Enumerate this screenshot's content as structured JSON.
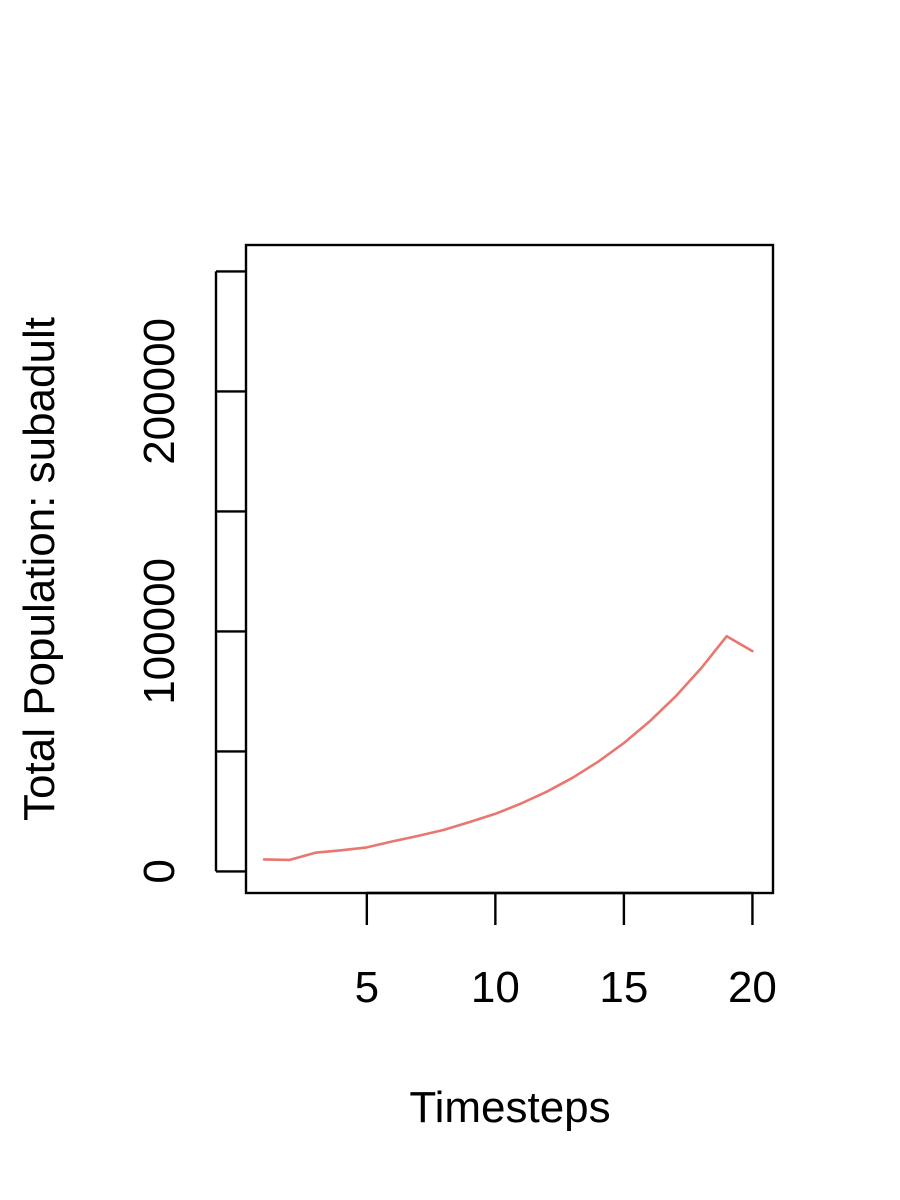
{
  "chart_data": {
    "type": "line",
    "xlabel": "Timesteps",
    "ylabel": "Total Population:  subadult",
    "xlim": [
      0.3,
      20.8
    ],
    "ylim": [
      -9000,
      261000
    ],
    "x_ticks": [
      5,
      10,
      15,
      20
    ],
    "x_tick_labels": [
      "5",
      "10",
      "15",
      "20"
    ],
    "y_ticks": [
      0,
      50000,
      100000,
      150000,
      200000,
      250000
    ],
    "y_tick_labels": [
      "0",
      "",
      "100000",
      "",
      "200000",
      ""
    ],
    "grid": false,
    "series": [
      {
        "color": "#e8776f",
        "x": [
          1,
          2,
          3,
          4,
          5,
          6,
          7,
          8,
          9,
          10,
          11,
          12,
          13,
          14,
          15,
          16,
          17,
          18,
          19,
          20
        ],
        "y": [
          5000,
          4800,
          7800,
          8800,
          10000,
          12500,
          14800,
          17300,
          20600,
          24000,
          28300,
          33200,
          39000,
          45700,
          53500,
          62500,
          72800,
          84600,
          98000,
          91800
        ]
      }
    ]
  }
}
